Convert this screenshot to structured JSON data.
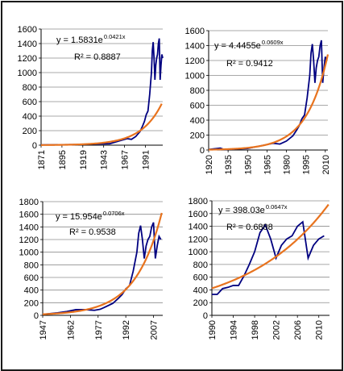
{
  "chart_data": [
    {
      "type": "line",
      "panel": "top-left",
      "title": "",
      "xlabel": "",
      "ylabel": "",
      "xlim": [
        1871,
        2011
      ],
      "ylim": [
        0,
        1600
      ],
      "x_ticks": [
        "1871",
        "1895",
        "1919",
        "1943",
        "1967",
        "1991"
      ],
      "y_ticks": [
        "0",
        "200",
        "400",
        "600",
        "800",
        "1000",
        "1200",
        "1400",
        "1600"
      ],
      "grid": true,
      "equation": {
        "prefix": "y = 1.5831e",
        "exponent": "0.0421x",
        "r2": "R² = 0.8887"
      },
      "series": [
        {
          "role": "data",
          "color": "#000080",
          "x": [
            1871,
            1890,
            1910,
            1930,
            1950,
            1960,
            1970,
            1975,
            1980,
            1985,
            1988,
            1990,
            1992,
            1994,
            1996,
            1998,
            1999,
            2000,
            2001,
            2002,
            2003,
            2004,
            2005,
            2006,
            2007,
            2008,
            2009,
            2010,
            2011
          ],
          "y": [
            4,
            6,
            8,
            15,
            20,
            55,
            90,
            80,
            120,
            190,
            270,
            330,
            420,
            470,
            700,
            1000,
            1300,
            1420,
            1200,
            900,
            1100,
            1200,
            1250,
            1400,
            1470,
            900,
            1100,
            1250,
            1200
          ]
        },
        {
          "role": "trend",
          "color": "#E8731E",
          "fit": "exp",
          "a": 1.5831,
          "b": 0.0421,
          "x0": 1871
        }
      ]
    },
    {
      "type": "line",
      "panel": "top-right",
      "title": "",
      "xlabel": "",
      "ylabel": "",
      "xlim": [
        1920,
        2012
      ],
      "ylim": [
        0,
        1600
      ],
      "x_ticks": [
        "1920",
        "1935",
        "1950",
        "1965",
        "1980",
        "1995",
        "2010"
      ],
      "y_ticks": [
        "0",
        "200",
        "400",
        "600",
        "800",
        "1000",
        "1200",
        "1400",
        "1600"
      ],
      "grid": true,
      "equation": {
        "prefix": "y = 4.4455e",
        "exponent": "0.0609x",
        "r2": "R² = 0.9412"
      },
      "series": [
        {
          "role": "data",
          "color": "#000080",
          "x": [
            1920,
            1929,
            1932,
            1940,
            1950,
            1960,
            1970,
            1975,
            1980,
            1985,
            1988,
            1990,
            1992,
            1994,
            1996,
            1998,
            1999,
            2000,
            2001,
            2002,
            2003,
            2004,
            2005,
            2006,
            2007,
            2008,
            2009,
            2010,
            2011
          ],
          "y": [
            8,
            25,
            7,
            12,
            20,
            55,
            90,
            80,
            120,
            190,
            270,
            330,
            420,
            470,
            700,
            1000,
            1300,
            1420,
            1200,
            900,
            1100,
            1200,
            1250,
            1400,
            1470,
            900,
            1100,
            1250,
            1200
          ]
        },
        {
          "role": "trend",
          "color": "#E8731E",
          "fit": "exp",
          "a": 4.4455,
          "b": 0.0609,
          "x0": 1920
        }
      ]
    },
    {
      "type": "line",
      "panel": "bottom-left",
      "title": "",
      "xlabel": "",
      "ylabel": "",
      "xlim": [
        1947,
        2012
      ],
      "ylim": [
        0,
        1800
      ],
      "x_ticks": [
        "1947",
        "1962",
        "1977",
        "1992",
        "2007"
      ],
      "y_ticks": [
        "0",
        "200",
        "400",
        "600",
        "800",
        "1000",
        "1200",
        "1400",
        "1600",
        "1800"
      ],
      "grid": true,
      "equation": {
        "prefix": "y = 15.954e",
        "exponent": "0.0706x",
        "r2": "R² = 0.9538"
      },
      "series": [
        {
          "role": "data",
          "color": "#000080",
          "x": [
            1947,
            1955,
            1960,
            1965,
            1970,
            1975,
            1978,
            1980,
            1985,
            1988,
            1990,
            1992,
            1994,
            1996,
            1998,
            1999,
            2000,
            2001,
            2002,
            2003,
            2004,
            2005,
            2006,
            2007,
            2008,
            2009,
            2010,
            2011
          ],
          "y": [
            15,
            40,
            60,
            90,
            90,
            80,
            95,
            120,
            190,
            270,
            330,
            420,
            470,
            700,
            1000,
            1300,
            1420,
            1200,
            900,
            1100,
            1200,
            1250,
            1400,
            1470,
            900,
            1100,
            1250,
            1200
          ]
        },
        {
          "role": "trend",
          "color": "#E8731E",
          "fit": "exp",
          "a": 15.954,
          "b": 0.0706,
          "x0": 1947
        }
      ]
    },
    {
      "type": "line",
      "panel": "bottom-right",
      "title": "",
      "xlabel": "",
      "ylabel": "",
      "xlim": [
        1990,
        2012
      ],
      "ylim": [
        0,
        1800
      ],
      "x_ticks": [
        "1990",
        "1994",
        "1998",
        "2002",
        "2006",
        "2010"
      ],
      "y_ticks": [
        "0",
        "200",
        "400",
        "600",
        "800",
        "1000",
        "1200",
        "1400",
        "1600",
        "1800"
      ],
      "grid": true,
      "equation": {
        "prefix": "y = 398.03e",
        "exponent": "0.0647x",
        "r2": "R² = 0.6888"
      },
      "series": [
        {
          "role": "data",
          "color": "#000080",
          "x": [
            1990,
            1991,
            1992,
            1993,
            1994,
            1995,
            1996,
            1997,
            1998,
            1999,
            2000,
            2001,
            2002,
            2003,
            2004,
            2005,
            2006,
            2007,
            2008,
            2009,
            2010,
            2011
          ],
          "y": [
            330,
            330,
            420,
            440,
            470,
            470,
            620,
            800,
            1000,
            1300,
            1420,
            1200,
            900,
            1100,
            1200,
            1250,
            1400,
            1470,
            900,
            1100,
            1200,
            1250
          ]
        },
        {
          "role": "trend",
          "color": "#E8731E",
          "fit": "exp",
          "a": 398.03,
          "b": 0.0647,
          "x0": 1990
        }
      ]
    }
  ]
}
